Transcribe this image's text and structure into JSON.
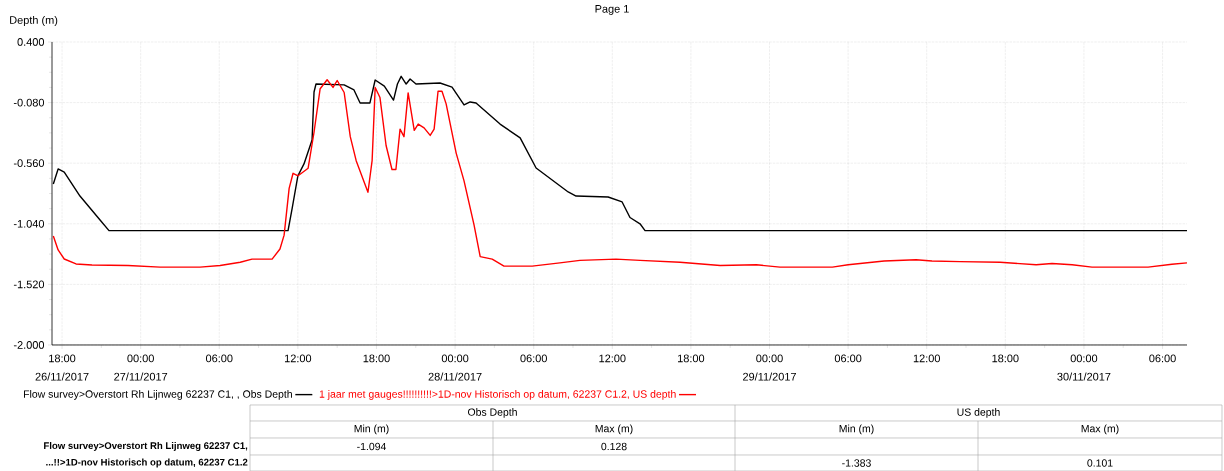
{
  "chart_data": {
    "type": "line",
    "title": "Page 1",
    "ylabel": "Depth (m)",
    "xlim": [
      "2017-11-26T17:14",
      "2017-11-30T07:52"
    ],
    "xticks": [
      {
        "value": "2017-11-26T18:00",
        "label": "18:00"
      },
      {
        "value": "2017-11-27T00:00",
        "label": "00:00"
      },
      {
        "value": "2017-11-27T06:00",
        "label": "06:00"
      },
      {
        "value": "2017-11-27T12:00",
        "label": "12:00"
      },
      {
        "value": "2017-11-27T18:00",
        "label": "18:00"
      },
      {
        "value": "2017-11-28T00:00",
        "label": "00:00"
      },
      {
        "value": "2017-11-28T06:00",
        "label": "06:00"
      },
      {
        "value": "2017-11-28T12:00",
        "label": "12:00"
      },
      {
        "value": "2017-11-28T18:00",
        "label": "18:00"
      },
      {
        "value": "2017-11-29T00:00",
        "label": "00:00"
      },
      {
        "value": "2017-11-29T06:00",
        "label": "06:00"
      },
      {
        "value": "2017-11-29T12:00",
        "label": "12:00"
      },
      {
        "value": "2017-11-29T18:00",
        "label": "18:00"
      },
      {
        "value": "2017-11-30T00:00",
        "label": "00:00"
      },
      {
        "value": "2017-11-30T06:00",
        "label": "06:00"
      }
    ],
    "ylim": [
      -2.0,
      0.4
    ],
    "yticks": [
      {
        "value": 0.4,
        "label": "0.400"
      },
      {
        "value": -0.08,
        "label": "-0.080"
      },
      {
        "value": -0.56,
        "label": "-0.560"
      },
      {
        "value": -1.04,
        "label": "-1.040"
      },
      {
        "value": -1.52,
        "label": "-1.520"
      },
      {
        "value": -2.0,
        "label": "-2.000"
      }
    ],
    "grid": true,
    "legend": "bottom",
    "series": [
      {
        "name": "Flow survey>Overstort Rh Lijnweg 62237 C1, , Obs Depth",
        "color": "#000000",
        "x": [
          "2017-11-26T17:20",
          "2017-11-26T17:42",
          "2017-11-26T18:10",
          "2017-11-26T19:22",
          "2017-11-26T20:54",
          "2017-11-26T21:35",
          "2017-11-27T11:15",
          "2017-11-27T11:34",
          "2017-11-27T12:00",
          "2017-11-27T12:28",
          "2017-11-27T13:05",
          "2017-11-27T13:14",
          "2017-11-27T13:23",
          "2017-11-27T15:32",
          "2017-11-27T16:17",
          "2017-11-27T16:45",
          "2017-11-27T17:30",
          "2017-11-27T17:54",
          "2017-11-27T18:36",
          "2017-11-27T19:18",
          "2017-11-27T19:36",
          "2017-11-27T19:53",
          "2017-11-27T20:16",
          "2017-11-27T20:34",
          "2017-11-27T21:01",
          "2017-11-27T22:51",
          "2017-11-27T23:46",
          "2017-11-28T00:41",
          "2017-11-28T01:09",
          "2017-11-28T01:36",
          "2017-11-28T03:26",
          "2017-11-28T04:58",
          "2017-11-28T06:11",
          "2017-11-28T08:38",
          "2017-11-28T09:14",
          "2017-11-28T11:41",
          "2017-11-28T12:45",
          "2017-11-28T13:21",
          "2017-11-28T14:07",
          "2017-11-28T14:30",
          "2017-11-30T07:52"
        ],
        "values": [
          -0.725,
          -0.606,
          -0.63,
          -0.82,
          -1.01,
          -1.094,
          -1.094,
          -0.915,
          -0.66,
          -0.566,
          -0.376,
          0.004,
          0.067,
          0.06,
          0.02,
          -0.083,
          -0.083,
          0.099,
          0.051,
          -0.06,
          0.067,
          0.128,
          0.067,
          0.107,
          0.067,
          0.075,
          0.043,
          -0.099,
          -0.075,
          -0.083,
          -0.25,
          -0.36,
          -0.598,
          -0.788,
          -0.82,
          -0.828,
          -0.867,
          -0.99,
          -1.04,
          -1.094,
          -1.094
        ]
      },
      {
        "name": "1 jaar met gauges!!!!!!!!!!>1D-nov Historisch op datum, 62237 C1.2, US depth",
        "color": "#ff0000",
        "x": [
          "2017-11-26T17:20",
          "2017-11-26T17:42",
          "2017-11-26T18:10",
          "2017-11-26T19:04",
          "2017-11-26T20:17",
          "2017-11-26T23:02",
          "2017-11-27T01:29",
          "2017-11-27T04:32",
          "2017-11-27T06:04",
          "2017-11-27T07:36",
          "2017-11-27T08:30",
          "2017-11-27T10:02",
          "2017-11-27T10:38",
          "2017-11-27T10:57",
          "2017-11-27T11:20",
          "2017-11-27T11:38",
          "2017-11-27T12:01",
          "2017-11-27T12:47",
          "2017-11-27T13:14",
          "2017-11-27T13:42",
          "2017-11-27T14:14",
          "2017-11-27T14:41",
          "2017-11-27T15:00",
          "2017-11-27T15:32",
          "2017-11-27T16:00",
          "2017-11-27T16:27",
          "2017-11-27T17:21",
          "2017-11-27T17:40",
          "2017-11-27T17:54",
          "2017-11-27T18:16",
          "2017-11-27T18:44",
          "2017-11-27T19:11",
          "2017-11-27T19:29",
          "2017-11-27T19:48",
          "2017-11-27T20:06",
          "2017-11-27T20:25",
          "2017-11-27T20:53",
          "2017-11-27T21:11",
          "2017-11-27T21:38",
          "2017-11-27T22:06",
          "2017-11-27T22:24",
          "2017-11-27T22:42",
          "2017-11-27T23:00",
          "2017-11-27T23:19",
          "2017-11-28T00:05",
          "2017-11-28T00:41",
          "2017-11-28T01:27",
          "2017-11-28T01:55",
          "2017-11-28T02:50",
          "2017-11-28T03:44",
          "2017-11-28T05:53",
          "2017-11-28T08:00",
          "2017-11-28T09:32",
          "2017-11-28T12:17",
          "2017-11-28T14:07",
          "2017-11-28T17:10",
          "2017-11-28T20:14",
          "2017-11-28T23:00",
          "2017-11-29T00:48",
          "2017-11-29T04:48",
          "2017-11-29T06:00",
          "2017-11-29T08:45",
          "2017-11-29T11:11",
          "2017-11-29T12:24",
          "2017-11-29T14:32",
          "2017-11-29T17:36",
          "2017-11-29T20:21",
          "2017-11-29T21:34",
          "2017-11-29T23:06",
          "2017-11-30T00:37",
          "2017-11-30T04:54",
          "2017-11-30T06:43",
          "2017-11-30T07:52"
        ],
        "values": [
          -1.137,
          -1.247,
          -1.319,
          -1.358,
          -1.366,
          -1.37,
          -1.383,
          -1.383,
          -1.37,
          -1.345,
          -1.32,
          -1.32,
          -1.24,
          -1.13,
          -0.76,
          -0.64,
          -0.66,
          -0.6,
          -0.315,
          0.03,
          0.101,
          0.04,
          0.095,
          0.0,
          -0.35,
          -0.54,
          -0.79,
          -0.54,
          0.04,
          -0.04,
          -0.42,
          -0.61,
          -0.61,
          -0.29,
          -0.35,
          -0.003,
          -0.3,
          -0.25,
          -0.28,
          -0.34,
          -0.29,
          0.01,
          0.01,
          -0.09,
          -0.48,
          -0.7,
          -1.05,
          -1.3,
          -1.32,
          -1.375,
          -1.375,
          -1.35,
          -1.33,
          -1.32,
          -1.33,
          -1.345,
          -1.37,
          -1.365,
          -1.383,
          -1.383,
          -1.365,
          -1.335,
          -1.325,
          -1.335,
          -1.34,
          -1.345,
          -1.365,
          -1.355,
          -1.365,
          -1.383,
          -1.383,
          -1.36,
          -1.35
        ]
      }
    ],
    "annotations": [
      "26/11/2017",
      "27/11/2017",
      "28/11/2017",
      "29/11/2017",
      "30/11/2017",
      "Obs Depth",
      "US depth",
      "Min (m)",
      "Max (m)",
      "Min (m)",
      "Max (m)",
      "Flow survey>Overstort Rh Lijnweg 62237 C1,",
      "-1.094",
      "0.128",
      "...!!>1D-nov Historisch op datum, 62237 C1.2",
      "-1.383",
      "0.101"
    ]
  }
}
